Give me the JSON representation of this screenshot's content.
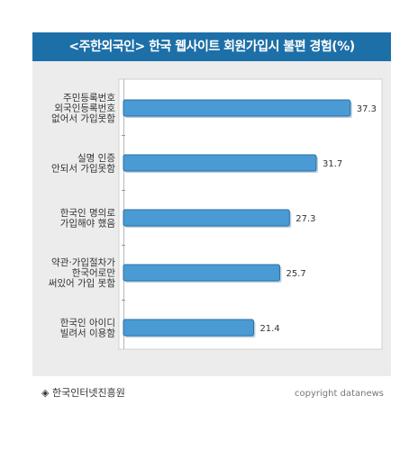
{
  "header": {
    "title": "<주한외국인> 한국 웹사이트 회원가입시 불편 경험(%)"
  },
  "footer": {
    "source": "◈ 한국인터넷진흥원",
    "copyright": "copyright datanews"
  },
  "chart_data": {
    "type": "bar",
    "orientation": "horizontal",
    "title": "<주한외국인> 한국 웹사이트 회원가입시 불편 경험(%)",
    "categories": [
      [
        "주민등록번호",
        "외국인등록번호",
        "없어서 가입못함"
      ],
      [
        "실명 인증",
        "안되서 가입못함"
      ],
      [
        "한국인 명의로",
        "가입해야 했음"
      ],
      [
        "약관·가입절차가",
        "한국어로만",
        "써있어 가입 못함"
      ],
      [
        "한국인 아이디",
        "빌려서 이용함"
      ]
    ],
    "values": [
      37.3,
      31.7,
      27.3,
      25.7,
      21.4
    ],
    "xlim": [
      0,
      40
    ],
    "grid": false,
    "colors": {
      "bar_fill": "#4a9bd4",
      "bar_stroke": "#2a6fa3",
      "title_bg": "#1d6fa8"
    }
  }
}
